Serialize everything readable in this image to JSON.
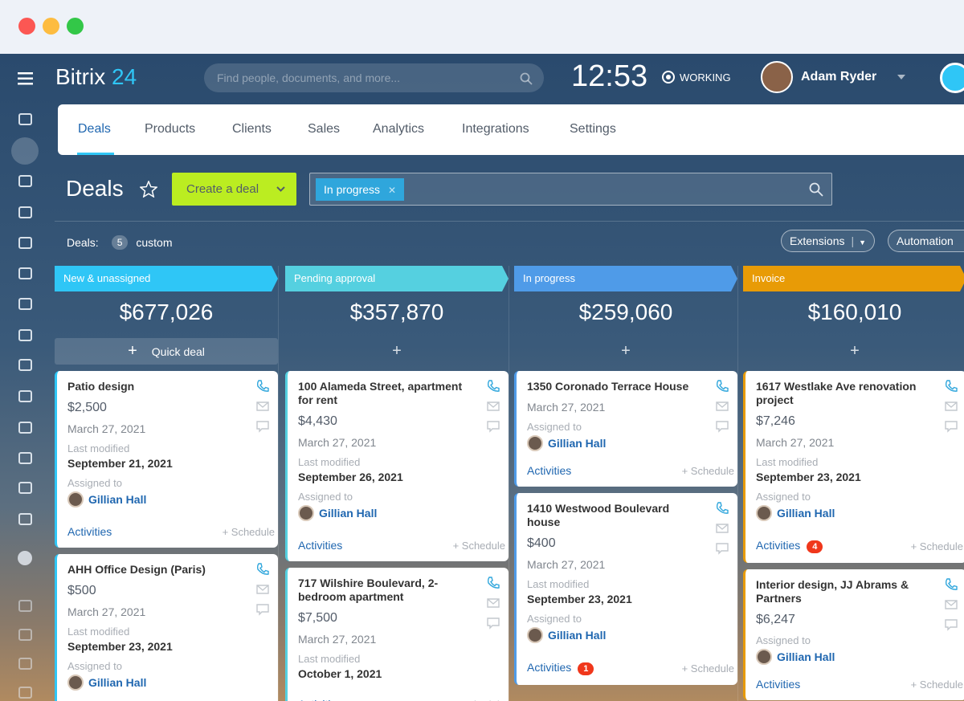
{
  "header": {
    "logo": "Bitrix",
    "logo_num": "24",
    "search_placeholder": "Find people, documents, and more...",
    "time": "12:53",
    "status": "WORKING",
    "user": "Adam Ryder"
  },
  "tabs": [
    "Deals",
    "Products",
    "Clients",
    "Sales",
    "Analytics",
    "Integrations",
    "Settings"
  ],
  "toolbar": {
    "title": "Deals",
    "create": "Create a deal",
    "filter_chip": "In progress"
  },
  "subbar": {
    "label": "Deals:",
    "count": 5,
    "mode": "custom",
    "extensions": "Extensions",
    "automation": "Automation rules"
  },
  "labels": {
    "quick_deal": "Quick deal",
    "last_modified": "Last modified",
    "assigned_to": "Assigned to",
    "activities": "Activities",
    "schedule": "+ Schedule"
  },
  "columns": [
    {
      "name": "New & unassigned",
      "color": "#2fc6f6",
      "total": "$677,026",
      "cards": [
        {
          "title": "Patio design",
          "price": "$2,500",
          "date": "March 27, 2021",
          "modified": "September 21, 2021",
          "assigned": "Gillian Hall"
        },
        {
          "title": "AHH Office Design (Paris)",
          "price": "$500",
          "date": "March 27, 2021",
          "modified": "September 23, 2021",
          "assigned": "Gillian Hall"
        }
      ]
    },
    {
      "name": "Pending approval",
      "color": "#55d0e0",
      "total": "$357,870",
      "cards": [
        {
          "title": "100 Alameda Street, apartment for rent",
          "price": "$4,430",
          "date": "March 27, 2021",
          "modified": "September 26, 2021",
          "assigned": "Gillian Hall"
        },
        {
          "title": "717 Wilshire Boulevard, 2-bedroom apartment",
          "price": "$7,500",
          "date": "March 27, 2021",
          "modified": "October 1, 2021"
        }
      ]
    },
    {
      "name": "In progress",
      "color": "#4f9be8",
      "total": "$259,060",
      "cards": [
        {
          "title": "1350 Coronado Terrace House",
          "date": "March 27, 2021",
          "assigned": "Gillian Hall"
        },
        {
          "title": "1410 Westwood Boulevard house",
          "price": "$400",
          "date": "March 27, 2021",
          "modified": "September 23, 2021",
          "assigned": "Gillian Hall",
          "activities_count": 1
        }
      ]
    },
    {
      "name": "Invoice",
      "color": "#e89b06",
      "total": "$160,010",
      "cards": [
        {
          "title": "1617 Westlake Ave renovation project",
          "price": "$7,246",
          "date": "March 27, 2021",
          "modified": "September 23, 2021",
          "assigned": "Gillian Hall",
          "activities_count": 4
        },
        {
          "title": "Interior design, JJ Abrams & Partners",
          "price": "$6,247",
          "assigned": "Gillian Hall"
        }
      ]
    }
  ]
}
